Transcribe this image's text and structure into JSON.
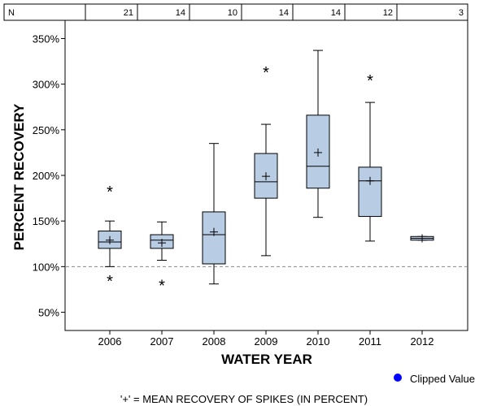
{
  "chart_data": {
    "type": "boxplot",
    "n_row_label": "N",
    "xlabel": "WATER YEAR",
    "ylabel": "PERCENT RECOVERY",
    "ylim": [
      30,
      370
    ],
    "yticks": [
      50,
      100,
      150,
      200,
      250,
      300,
      350
    ],
    "ytick_suffix": "%",
    "reference_line": 100,
    "categories": [
      "2006",
      "2007",
      "2008",
      "2009",
      "2010",
      "2011",
      "2012"
    ],
    "n": [
      "21",
      "14",
      "10",
      "14",
      "14",
      "12",
      "3"
    ],
    "boxes": [
      {
        "year": "2006",
        "whisker_low": 100,
        "q1": 120,
        "median": 127,
        "q3": 139,
        "whisker_high": 150,
        "mean": 129,
        "outliers": [
          184,
          86
        ]
      },
      {
        "year": "2007",
        "whisker_low": 107,
        "q1": 120,
        "median": 129,
        "q3": 135,
        "whisker_high": 149,
        "mean": 126,
        "outliers": [
          81
        ]
      },
      {
        "year": "2008",
        "whisker_low": 81,
        "q1": 103,
        "median": 135,
        "q3": 160,
        "whisker_high": 235,
        "mean": 138,
        "outliers": []
      },
      {
        "year": "2009",
        "whisker_low": 112,
        "q1": 175,
        "median": 193,
        "q3": 224,
        "whisker_high": 256,
        "mean": 199,
        "outliers": [
          315
        ]
      },
      {
        "year": "2010",
        "whisker_low": 154,
        "q1": 186,
        "median": 210,
        "q3": 266,
        "whisker_high": 337,
        "mean": 225,
        "outliers": []
      },
      {
        "year": "2011",
        "whisker_low": 128,
        "q1": 155,
        "median": 194,
        "q3": 209,
        "whisker_high": 280,
        "mean": 194,
        "outliers": [
          306
        ]
      },
      {
        "year": "2012",
        "whisker_low": 129,
        "q1": 129,
        "median": 131,
        "q3": 133,
        "whisker_high": 133,
        "mean": 131,
        "outliers": []
      }
    ],
    "legend": {
      "label": "Clipped Value",
      "marker_color": "#0000ff"
    },
    "footnote": "'+' = MEAN RECOVERY OF SPIKES (IN PERCENT)",
    "colors": {
      "box_fill": "#b8cce4",
      "reference_line": "#888888"
    }
  }
}
